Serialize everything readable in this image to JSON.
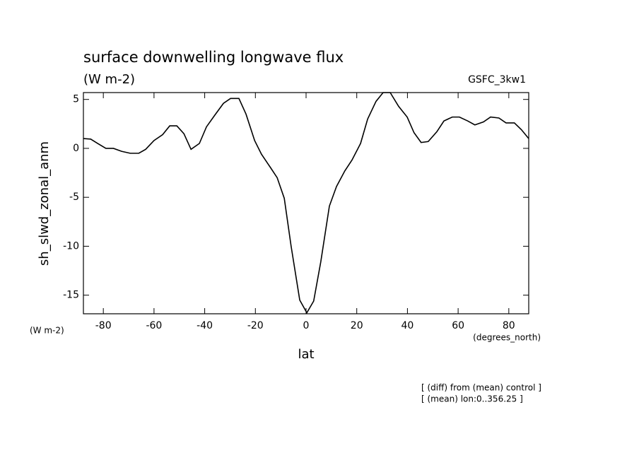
{
  "chart_data": {
    "type": "line",
    "title": "surface downwelling longwave flux",
    "subtitle": "(W m-2)",
    "source": "GSFC_3kw1",
    "y_label": "sh_slwd_zonal_anm",
    "y_units": "(W m-2)",
    "x_label": "lat",
    "x_units": "(degrees_north)",
    "notes": [
      "[ (diff) from (mean) control ]",
      "[ (mean) lon:0..356.25 ]"
    ],
    "x": [
      -87.86,
      -85,
      -82.2,
      -79,
      -76,
      -72.8,
      -69.4,
      -66,
      -63.3,
      -60,
      -56.6,
      -53.8,
      -51,
      -48.2,
      -45.4,
      -42.1,
      -39.3,
      -36,
      -32.6,
      -29.8,
      -26.5,
      -23.7,
      -20.3,
      -17.6,
      -14.2,
      -11.4,
      -8.6,
      -5.9,
      -2.5,
      0.3,
      3,
      5.8,
      9.2,
      12,
      15.3,
      18.1,
      21.5,
      24.3,
      27.6,
      30.4,
      33.2,
      36.5,
      39.9,
      42.6,
      45.4,
      48.2,
      51.6,
      54.4,
      57.7,
      60.5,
      63.8,
      66.6,
      70,
      72.8,
      76.1,
      78.9,
      82.2,
      85,
      87.86
    ],
    "series": [
      {
        "color": "#000000",
        "values": [
          1.0,
          0.95,
          0.5,
          0.0,
          0.0,
          -0.3,
          -0.5,
          -0.5,
          -0.1,
          0.8,
          1.4,
          2.3,
          2.3,
          1.5,
          -0.1,
          0.5,
          2.2,
          3.4,
          4.6,
          5.1,
          5.1,
          3.5,
          0.8,
          -0.6,
          -1.9,
          -3.0,
          -5.1,
          -10.0,
          -15.5,
          -16.8,
          -15.6,
          -11.6,
          -5.9,
          -3.9,
          -2.3,
          -1.2,
          0.5,
          3.0,
          4.8,
          5.7,
          5.7,
          4.3,
          3.2,
          1.6,
          0.6,
          0.7,
          1.7,
          2.8,
          3.2,
          3.2,
          2.8,
          2.4,
          2.7,
          3.2,
          3.1,
          2.6,
          2.6,
          1.9,
          1.0
        ]
      }
    ],
    "xlim": [
      -87.86,
      87.86
    ],
    "xticks": [
      -80,
      -60,
      -40,
      -20,
      0,
      20,
      40,
      60,
      80
    ],
    "ylim": [
      -16.9,
      5.7
    ],
    "yticks": [
      -15,
      -10,
      -5,
      0,
      5
    ]
  }
}
